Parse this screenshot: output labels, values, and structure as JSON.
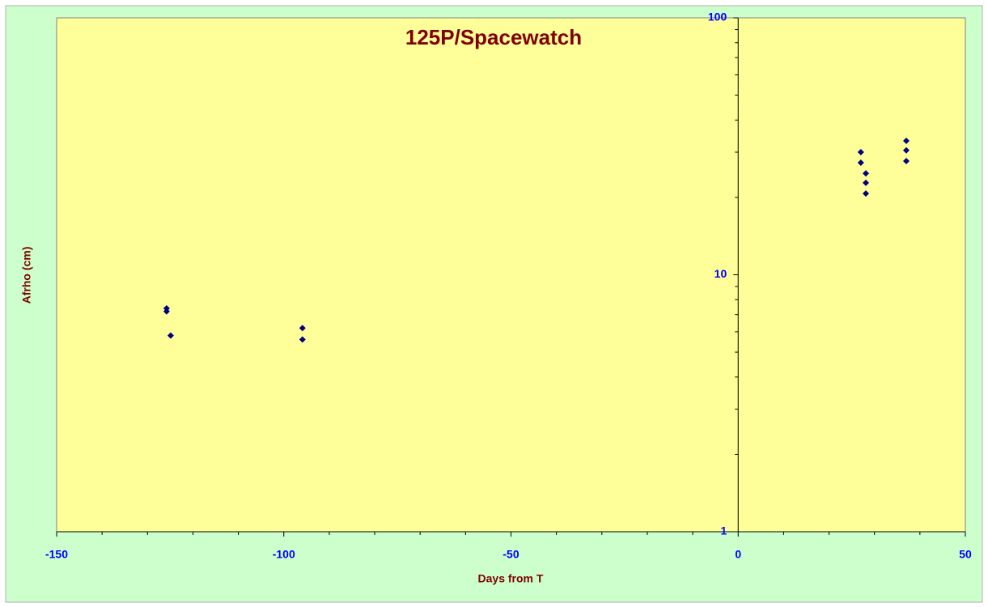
{
  "chart_data": {
    "type": "scatter",
    "title": "125P/Spacewatch",
    "x_label": "Days from T",
    "y_label": "Afrho (cm)",
    "series": [
      {
        "name": "Afrho",
        "color": "#000080",
        "x": [
          -125.8,
          -125.8,
          -124.9,
          -95.9,
          -95.9,
          27.0,
          27.0,
          28.1,
          28.1,
          28.1,
          37.0,
          37.0,
          37.0
        ],
        "values": [
          7.4,
          7.2,
          5.8,
          6.2,
          5.6,
          30,
          27.3,
          24.8,
          22.8,
          20.7,
          33.2,
          30.5,
          27.7
        ]
      }
    ],
    "xlim": [
      -150,
      50
    ],
    "xticks": [
      -150,
      -100,
      -50,
      0,
      50
    ],
    "xminor_ticks": [
      -140,
      -130,
      -120,
      -110,
      -90,
      -80,
      -70,
      -60,
      -40,
      -30,
      -20,
      -10,
      10,
      20,
      30,
      40
    ],
    "ylim": [
      1,
      100
    ],
    "yticks": [
      1,
      10,
      100
    ],
    "yscale": "log",
    "yminor_ticks": [
      2,
      3,
      4,
      5,
      6,
      7,
      8,
      9,
      20,
      30,
      40,
      50,
      60,
      70,
      80,
      90
    ],
    "background": "#ccffcc",
    "plot_background": "#ffff99",
    "tick_color": "#0000ff",
    "label_color": "#800000"
  }
}
